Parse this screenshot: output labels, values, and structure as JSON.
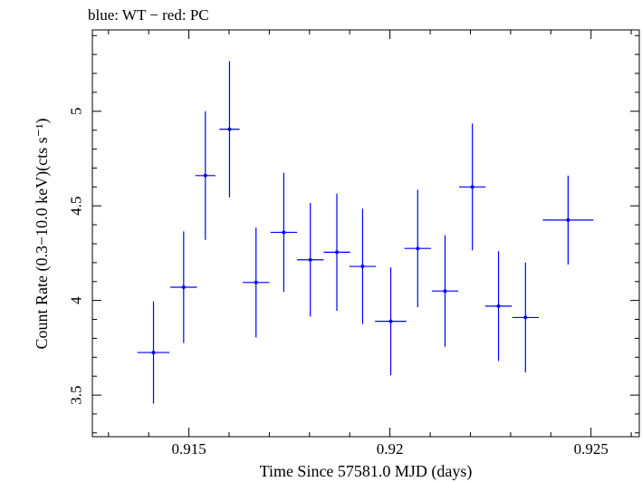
{
  "chart_data": {
    "type": "scatter",
    "title": "blue: WT − red: PC",
    "xlabel": "Time Since 57581.0 MJD (days)",
    "ylabel": "Count Rate (0.3−10.0 keV)(cts s⁻¹)",
    "xlim": [
      0.9126,
      0.9262
    ],
    "ylim": [
      3.28,
      5.43
    ],
    "xticks": [
      0.915,
      0.92,
      0.925
    ],
    "xtick_labels": [
      "0.915",
      "0.92",
      "0.925"
    ],
    "yticks": [
      3.5,
      4,
      4.5,
      5
    ],
    "ytick_labels": [
      "3.5",
      "4",
      "4.5",
      "5"
    ],
    "grid": false,
    "series": [
      {
        "color": "#0000ff",
        "points": [
          {
            "x": 0.91412,
            "y": 3.725,
            "xerr": 0.0004,
            "yerr_low": 0.27,
            "yerr_high": 0.27
          },
          {
            "x": 0.91487,
            "y": 4.07,
            "xerr": 0.00033,
            "yerr_low": 0.295,
            "yerr_high": 0.295
          },
          {
            "x": 0.91541,
            "y": 4.66,
            "xerr": 0.00025,
            "yerr_low": 0.34,
            "yerr_high": 0.34
          },
          {
            "x": 0.91601,
            "y": 4.905,
            "xerr": 0.00025,
            "yerr_low": 0.36,
            "yerr_high": 0.36
          },
          {
            "x": 0.91667,
            "y": 4.095,
            "xerr": 0.00033,
            "yerr_low": 0.29,
            "yerr_high": 0.29
          },
          {
            "x": 0.91736,
            "y": 4.36,
            "xerr": 0.00033,
            "yerr_low": 0.315,
            "yerr_high": 0.315
          },
          {
            "x": 0.91802,
            "y": 4.215,
            "xerr": 0.00033,
            "yerr_low": 0.3,
            "yerr_high": 0.3
          },
          {
            "x": 0.91868,
            "y": 4.255,
            "xerr": 0.00033,
            "yerr_low": 0.31,
            "yerr_high": 0.31
          },
          {
            "x": 0.91932,
            "y": 4.18,
            "xerr": 0.00033,
            "yerr_low": 0.305,
            "yerr_high": 0.305
          },
          {
            "x": 0.92002,
            "y": 3.89,
            "xerr": 0.00039,
            "yerr_low": 0.285,
            "yerr_high": 0.285
          },
          {
            "x": 0.92069,
            "y": 4.275,
            "xerr": 0.00033,
            "yerr_low": 0.31,
            "yerr_high": 0.31
          },
          {
            "x": 0.92137,
            "y": 4.05,
            "xerr": 0.00033,
            "yerr_low": 0.295,
            "yerr_high": 0.295
          },
          {
            "x": 0.92205,
            "y": 4.6,
            "xerr": 0.00033,
            "yerr_low": 0.335,
            "yerr_high": 0.335
          },
          {
            "x": 0.9227,
            "y": 3.97,
            "xerr": 0.00033,
            "yerr_low": 0.29,
            "yerr_high": 0.29
          },
          {
            "x": 0.92337,
            "y": 3.91,
            "xerr": 0.00033,
            "yerr_low": 0.29,
            "yerr_high": 0.29
          },
          {
            "x": 0.92443,
            "y": 4.425,
            "xerr": 0.00063,
            "yerr_low": 0.235,
            "yerr_high": 0.235
          }
        ]
      }
    ]
  }
}
